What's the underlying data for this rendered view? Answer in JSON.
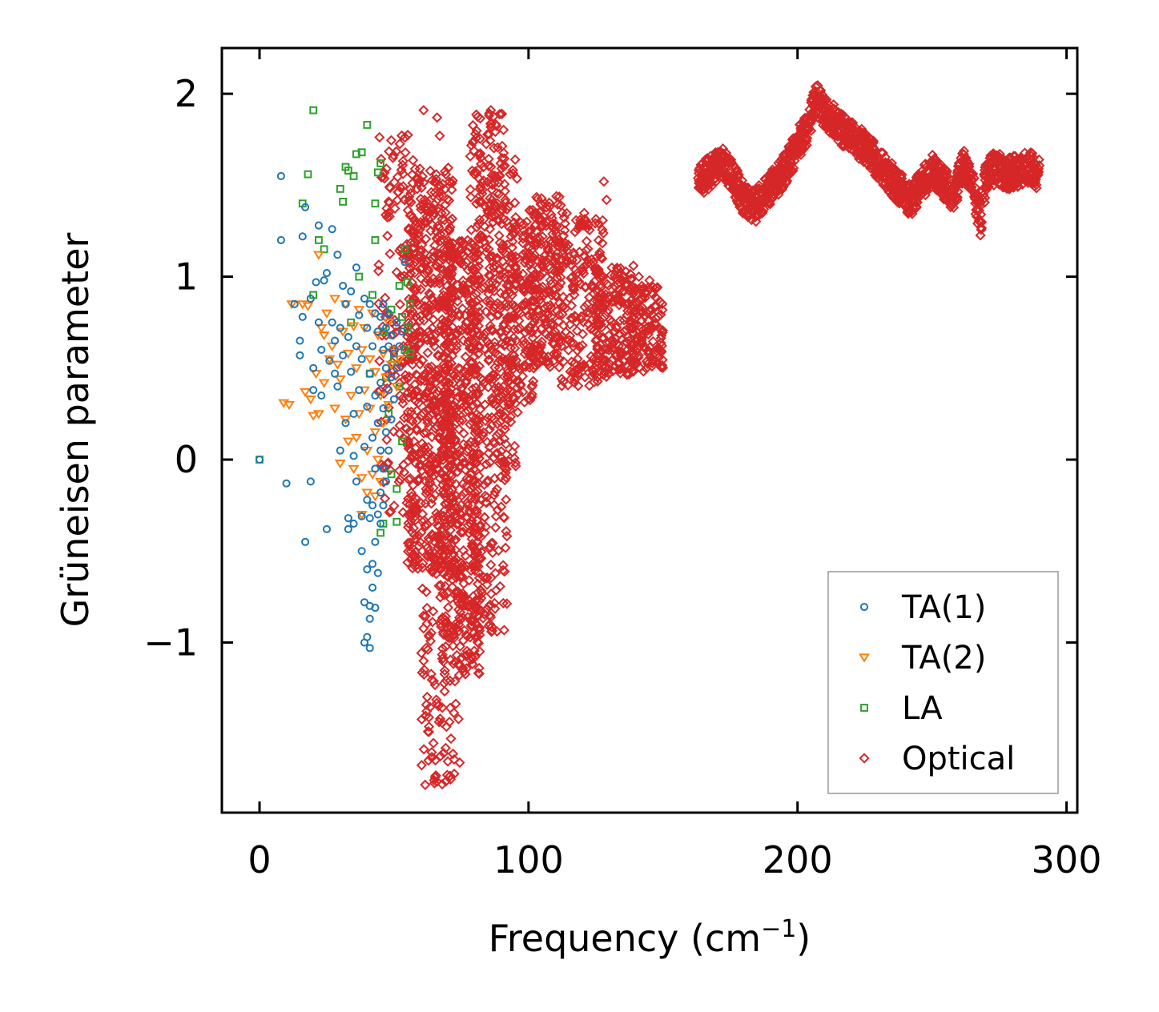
{
  "chart_data": {
    "type": "scatter",
    "title": "",
    "xlabel": "Frequency (cm",
    "xlabel_sup": "−1",
    "xlabel_close": ")",
    "ylabel": "Grüneisen parameter",
    "xlim": [
      -14,
      304
    ],
    "ylim": [
      -1.93,
      2.25
    ],
    "xticks": [
      0,
      100,
      200,
      300
    ],
    "xtick_labels": [
      "0",
      "100",
      "200",
      "300"
    ],
    "yticks": [
      -1,
      0,
      1,
      2
    ],
    "ytick_labels": [
      "−1",
      "0",
      "1",
      "2"
    ],
    "legend_position": "lower-right",
    "series": [
      {
        "name": "TA(1)",
        "marker": "circle",
        "color": "#1f77b4",
        "points": [
          [
            0,
            0
          ],
          [
            8,
            1.55
          ],
          [
            8,
            1.2
          ],
          [
            10,
            -0.13
          ],
          [
            13,
            0.85
          ],
          [
            15,
            0.65
          ],
          [
            15,
            0.57
          ],
          [
            16,
            1.22
          ],
          [
            16,
            0.78
          ],
          [
            17,
            1.38
          ],
          [
            17,
            -0.45
          ],
          [
            19,
            0.88
          ],
          [
            19,
            -0.12
          ],
          [
            20,
            0.5
          ],
          [
            20,
            0.38
          ],
          [
            21,
            0.97
          ],
          [
            22,
            1.28
          ],
          [
            22,
            0.75
          ],
          [
            23,
            0.6
          ],
          [
            23,
            0.35
          ],
          [
            24,
            0.98
          ],
          [
            25,
            1.02
          ],
          [
            25,
            -0.38
          ],
          [
            26,
            0.54
          ],
          [
            27,
            1.26
          ],
          [
            27,
            0.75
          ],
          [
            28,
            0.47
          ],
          [
            28,
            0.65
          ],
          [
            29,
            1.12
          ],
          [
            29,
            0.4
          ],
          [
            30,
            0.05
          ],
          [
            30,
            0.72
          ],
          [
            31,
            0.95
          ],
          [
            31,
            0.57
          ],
          [
            32,
            0.85
          ],
          [
            32,
            0.2
          ],
          [
            33,
            0.67
          ],
          [
            33,
            -0.32
          ],
          [
            33,
            -0.38
          ],
          [
            34,
            0.92
          ],
          [
            34,
            0.48
          ],
          [
            35,
            0.25
          ],
          [
            35,
            0.02
          ],
          [
            35,
            -0.35
          ],
          [
            36,
            1.05
          ],
          [
            36,
            0.62
          ],
          [
            36,
            -0.12
          ],
          [
            37,
            0.38
          ],
          [
            37,
            0.79
          ],
          [
            38,
            0.55
          ],
          [
            38,
            -0.31
          ],
          [
            38,
            -0.5
          ],
          [
            39,
            0.88
          ],
          [
            39,
            0.07
          ],
          [
            39,
            -0.78
          ],
          [
            39,
            -1.0
          ],
          [
            40,
            0.72
          ],
          [
            40,
            0.29
          ],
          [
            40,
            -0.22
          ],
          [
            40,
            -0.6
          ],
          [
            40,
            -0.97
          ],
          [
            41,
            0.85
          ],
          [
            41,
            0.47
          ],
          [
            41,
            -0.32
          ],
          [
            41,
            -0.8
          ],
          [
            41,
            -0.87
          ],
          [
            41,
            -1.03
          ],
          [
            42,
            0.62
          ],
          [
            42,
            0.12
          ],
          [
            42,
            -0.25
          ],
          [
            42,
            -0.57
          ],
          [
            42,
            -0.7
          ],
          [
            43,
            0.8
          ],
          [
            43,
            0.35
          ],
          [
            43,
            -0.05
          ],
          [
            43,
            -0.45
          ],
          [
            43,
            -0.81
          ],
          [
            44,
            0.7
          ],
          [
            44,
            0.2
          ],
          [
            44,
            -0.3
          ],
          [
            44,
            -0.62
          ],
          [
            45,
            0.78
          ],
          [
            45,
            0.42
          ],
          [
            45,
            0.05
          ],
          [
            45,
            -0.18
          ],
          [
            45,
            -0.35
          ],
          [
            46,
            0.85
          ],
          [
            46,
            0.6
          ],
          [
            46,
            0.28
          ],
          [
            46,
            -0.05
          ],
          [
            46,
            -0.25
          ],
          [
            47,
            0.72
          ],
          [
            47,
            0.5
          ],
          [
            47,
            0.15
          ],
          [
            47,
            -0.12
          ],
          [
            48,
            0.8
          ],
          [
            48,
            0.62
          ],
          [
            48,
            0.38
          ],
          [
            48,
            0.05
          ],
          [
            49,
            0.68
          ],
          [
            49,
            0.45
          ],
          [
            49,
            0.22
          ],
          [
            50,
            0.58
          ],
          [
            50,
            0.33
          ],
          [
            51,
            0.75
          ],
          [
            51,
            0.5
          ],
          [
            52,
            0.62
          ],
          [
            53,
            0.7
          ],
          [
            54,
            1.08
          ]
        ]
      },
      {
        "name": "TA(2)",
        "marker": "triangle-down",
        "color": "#ff7f0e",
        "points": [
          [
            12,
            0.85
          ],
          [
            9,
            0.31
          ],
          [
            11,
            0.3
          ],
          [
            16,
            0.85
          ],
          [
            17,
            0.37
          ],
          [
            18,
            0.84
          ],
          [
            19,
            0.33
          ],
          [
            20,
            0.24
          ],
          [
            21,
            0.47
          ],
          [
            22,
            0.25
          ],
          [
            22,
            1.12
          ],
          [
            23,
            0.72
          ],
          [
            24,
            0.68
          ],
          [
            24,
            0.42
          ],
          [
            25,
            0.8
          ],
          [
            26,
            0.55
          ],
          [
            27,
            0.62
          ],
          [
            28,
            0.88
          ],
          [
            28,
            0.28
          ],
          [
            29,
            0.52
          ],
          [
            30,
            -0.02
          ],
          [
            30,
            0.44
          ],
          [
            31,
            0.7
          ],
          [
            32,
            0.85
          ],
          [
            32,
            0.22
          ],
          [
            33,
            0.58
          ],
          [
            33,
            0.1
          ],
          [
            34,
            0.35
          ],
          [
            35,
            0.73
          ],
          [
            35,
            -0.05
          ],
          [
            36,
            0.5
          ],
          [
            36,
            0.12
          ],
          [
            37,
            0.82
          ],
          [
            37,
            0.25
          ],
          [
            38,
            0.6
          ],
          [
            38,
            -0.1
          ],
          [
            38,
            -0.3
          ],
          [
            39,
            0.72
          ],
          [
            39,
            0.38
          ],
          [
            40,
            0.05
          ],
          [
            40,
            -0.18
          ],
          [
            41,
            0.55
          ],
          [
            41,
            0.28
          ],
          [
            42,
            0.8
          ],
          [
            42,
            -0.08
          ],
          [
            43,
            0.48
          ],
          [
            43,
            0.15
          ],
          [
            43,
            -0.2
          ],
          [
            44,
            0.68
          ],
          [
            44,
            0.0
          ],
          [
            45,
            0.35
          ],
          [
            45,
            -0.12
          ],
          [
            46,
            0.58
          ],
          [
            46,
            0.2
          ],
          [
            47,
            0.45
          ],
          [
            48,
            0.75
          ],
          [
            48,
            0.3
          ],
          [
            49,
            0.52
          ],
          [
            50,
            0.6
          ],
          [
            51,
            0.4
          ],
          [
            52,
            0.55
          ]
        ]
      },
      {
        "name": "LA",
        "marker": "square",
        "color": "#2ca02c",
        "points": [
          [
            0,
            0
          ],
          [
            16,
            1.4
          ],
          [
            18,
            1.56
          ],
          [
            20,
            1.91
          ],
          [
            20,
            0.9
          ],
          [
            22,
            1.2
          ],
          [
            24,
            1.15
          ],
          [
            30,
            1.48
          ],
          [
            31,
            1.41
          ],
          [
            32,
            1.6
          ],
          [
            33,
            1.58
          ],
          [
            34,
            0.75
          ],
          [
            35,
            1.55
          ],
          [
            36,
            1.67
          ],
          [
            37,
            1.0
          ],
          [
            38,
            1.68
          ],
          [
            40,
            1.83
          ],
          [
            41,
            0.47
          ],
          [
            42,
            0.9
          ],
          [
            43,
            1.4
          ],
          [
            43,
            1.2
          ],
          [
            44,
            1.57
          ],
          [
            45,
            1.62
          ],
          [
            45,
            -0.4
          ],
          [
            46,
            0.7
          ],
          [
            46,
            -0.35
          ],
          [
            47,
            0.45
          ],
          [
            48,
            0.25
          ],
          [
            49,
            0.82
          ],
          [
            49,
            -0.08
          ],
          [
            50,
            0.55
          ],
          [
            51,
            -0.16
          ],
          [
            51,
            -0.34
          ],
          [
            52,
            0.95
          ],
          [
            52,
            0.4
          ],
          [
            53,
            0.78
          ],
          [
            53,
            0.1
          ],
          [
            54,
            1.15
          ],
          [
            54,
            0.6
          ],
          [
            55,
            0.97
          ],
          [
            55,
            0.72
          ],
          [
            56,
            0.85
          ],
          [
            56,
            0.58
          ]
        ]
      },
      {
        "name": "Optical",
        "marker": "diamond",
        "color": "#d62728",
        "clusters": [
          {
            "x": [
              44,
              58
            ],
            "y": [
              -0.3,
              1.78
            ],
            "n": 150
          },
          {
            "x": [
              55,
              72
            ],
            "y": [
              -0.6,
              1.6
            ],
            "n": 650
          },
          {
            "x": [
              60,
              75
            ],
            "y": [
              -1.78,
              -0.55
            ],
            "n": 120
          },
          {
            "x": [
              68,
              82
            ],
            "y": [
              -1.18,
              1.2
            ],
            "n": 500
          },
          {
            "x": [
              78,
              92
            ],
            "y": [
              -0.95,
              1.9
            ],
            "n": 350
          },
          {
            "x": [
              85,
              96
            ],
            "y": [
              -0.1,
              1.65
            ],
            "n": 150
          },
          {
            "x": [
              92,
              102
            ],
            "y": [
              0.3,
              1.3
            ],
            "n": 150
          },
          {
            "x": [
              100,
              112
            ],
            "y": [
              0.5,
              1.45
            ],
            "n": 220
          },
          {
            "x": [
              112,
              128
            ],
            "y": [
              0.4,
              1.35
            ],
            "n": 200
          },
          {
            "x": [
              125,
              140
            ],
            "y": [
              0.45,
              1.05
            ],
            "n": 180
          },
          {
            "x": [
              138,
              150
            ],
            "y": [
              0.48,
              0.95
            ],
            "n": 140
          }
        ],
        "band": {
          "x": [
            163,
            168,
            172,
            176,
            180,
            184,
            188,
            192,
            196,
            200,
            204,
            207,
            210,
            214,
            218,
            222,
            226,
            230,
            234,
            238,
            242,
            246,
            250,
            254,
            258,
            262,
            265,
            268,
            270,
            274,
            278,
            282,
            286,
            290
          ],
          "y": [
            1.52,
            1.58,
            1.62,
            1.55,
            1.42,
            1.38,
            1.45,
            1.52,
            1.6,
            1.72,
            1.82,
            1.97,
            1.9,
            1.85,
            1.78,
            1.74,
            1.7,
            1.62,
            1.55,
            1.48,
            1.42,
            1.5,
            1.58,
            1.52,
            1.45,
            1.62,
            1.5,
            1.3,
            1.55,
            1.6,
            1.56,
            1.58,
            1.6,
            1.55
          ],
          "spread": 0.09,
          "n": 1400
        },
        "points": [
          [
            61,
            1.91
          ],
          [
            66,
            1.87
          ],
          [
            67,
            1.77
          ],
          [
            86,
            1.91
          ],
          [
            90,
            1.89
          ],
          [
            128,
            1.52
          ],
          [
            129,
            1.42
          ],
          [
            139,
            1.06
          ],
          [
            145,
            0.98
          ],
          [
            141,
            1.0
          ],
          [
            66,
            -1.76
          ],
          [
            64,
            -1.6
          ],
          [
            63,
            -1.46
          ],
          [
            62,
            -1.34
          ],
          [
            61,
            -1.1
          ]
        ]
      }
    ]
  }
}
